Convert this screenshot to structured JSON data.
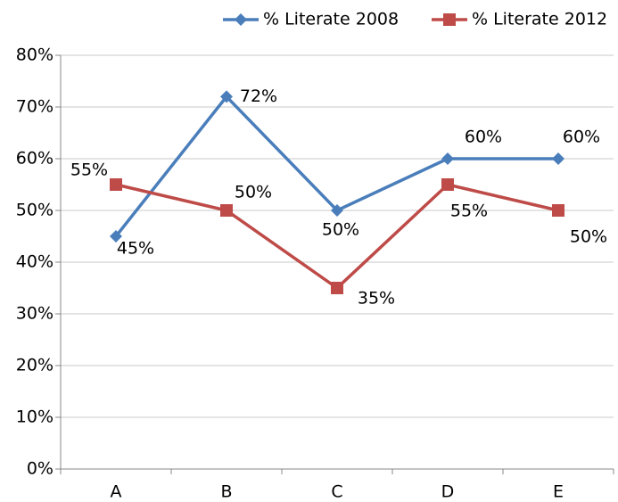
{
  "chart_data": {
    "type": "line",
    "categories": [
      "A",
      "B",
      "C",
      "D",
      "E"
    ],
    "series": [
      {
        "name": "% Literate 2008",
        "color": "#4a7ebb",
        "marker": "diamond",
        "values": [
          45,
          72,
          50,
          60,
          60
        ],
        "value_labels": [
          "45%",
          "72%",
          "50%",
          "60%",
          "60%"
        ]
      },
      {
        "name": "% Literate 2012",
        "color": "#be4b48",
        "marker": "square",
        "values": [
          55,
          50,
          35,
          55,
          50
        ],
        "value_labels": [
          "55%",
          "50%",
          "35%",
          "55%",
          "50%"
        ]
      }
    ],
    "ylim": [
      0,
      80
    ],
    "yticks": [
      {
        "value": 0,
        "label": "0%"
      },
      {
        "value": 10,
        "label": "10%"
      },
      {
        "value": 20,
        "label": "20%"
      },
      {
        "value": 30,
        "label": "30%"
      },
      {
        "value": 40,
        "label": "40%"
      },
      {
        "value": 50,
        "label": "50%"
      },
      {
        "value": 60,
        "label": "60%"
      },
      {
        "value": 70,
        "label": "70%"
      },
      {
        "value": 80,
        "label": "80%"
      }
    ],
    "grid": true,
    "legend": "top"
  }
}
